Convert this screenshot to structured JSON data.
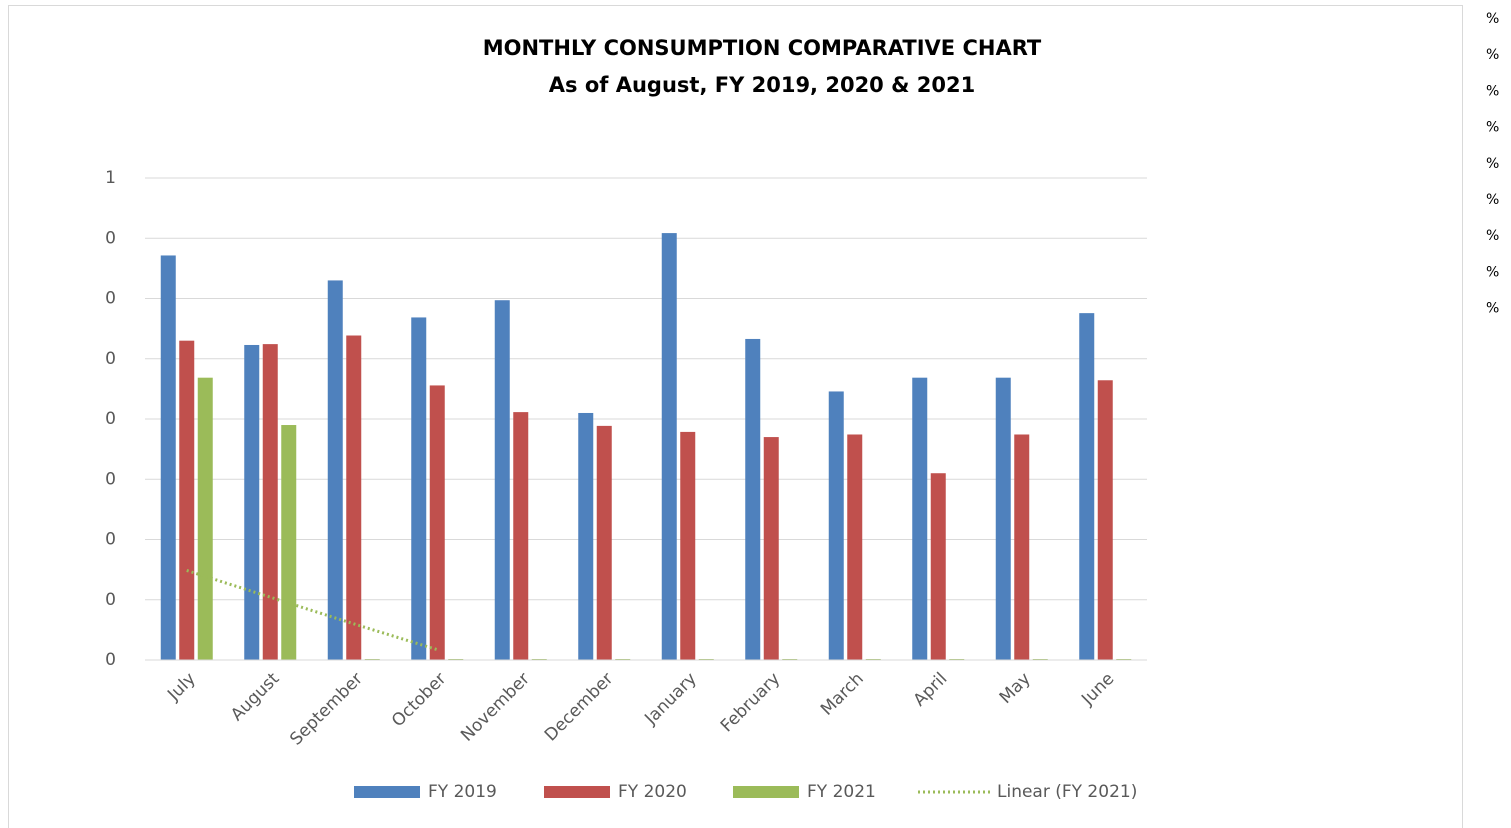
{
  "chart_data": {
    "type": "bar",
    "title": "MONTHLY CONSUMPTION COMPARATIVE CHART",
    "subtitle": "As of August, FY 2019, 2020 & 2021",
    "categories": [
      "July",
      "August",
      "September",
      "October",
      "November",
      "December",
      "January",
      "February",
      "March",
      "April",
      "May",
      "June"
    ],
    "series": [
      {
        "name": "FY 2019",
        "color": "#4f81bd",
        "values": [
          0.47,
          0.366,
          0.441,
          0.398,
          0.418,
          0.287,
          0.496,
          0.373,
          0.312,
          0.328,
          0.328,
          0.403
        ]
      },
      {
        "name": "FY 2020",
        "color": "#c0504d",
        "values": [
          0.371,
          0.367,
          0.377,
          0.319,
          0.288,
          0.272,
          0.265,
          0.259,
          0.262,
          0.217,
          0.262,
          0.325
        ]
      },
      {
        "name": "FY 2021",
        "color": "#9bbb59",
        "values": [
          0.328,
          0.273,
          0,
          0,
          0,
          0,
          0,
          0,
          0,
          0,
          0,
          0
        ]
      },
      {
        "name": "Linear (FY 2021)",
        "color": "#9bbb59",
        "type": "line",
        "dash": true,
        "values": [
          0.104,
          0.073,
          0.042,
          0.012,
          null,
          null,
          null,
          null,
          null,
          null,
          null,
          null
        ]
      }
    ],
    "ylim": [
      0,
      0.56
    ],
    "yticks": [
      {
        "value": 0,
        "label": "0"
      },
      {
        "value": 0.07,
        "label": "0"
      },
      {
        "value": 0.14,
        "label": "0"
      },
      {
        "value": 0.21,
        "label": "0"
      },
      {
        "value": 0.28,
        "label": "0"
      },
      {
        "value": 0.35,
        "label": "0"
      },
      {
        "value": 0.42,
        "label": "0"
      },
      {
        "value": 0.49,
        "label": "0"
      },
      {
        "value": 0.56,
        "label": "1"
      }
    ],
    "grid": true,
    "legend": "bottom"
  },
  "side_labels": [
    "%",
    "%",
    "%",
    "%",
    "%",
    "%",
    "%",
    "%",
    "%"
  ]
}
